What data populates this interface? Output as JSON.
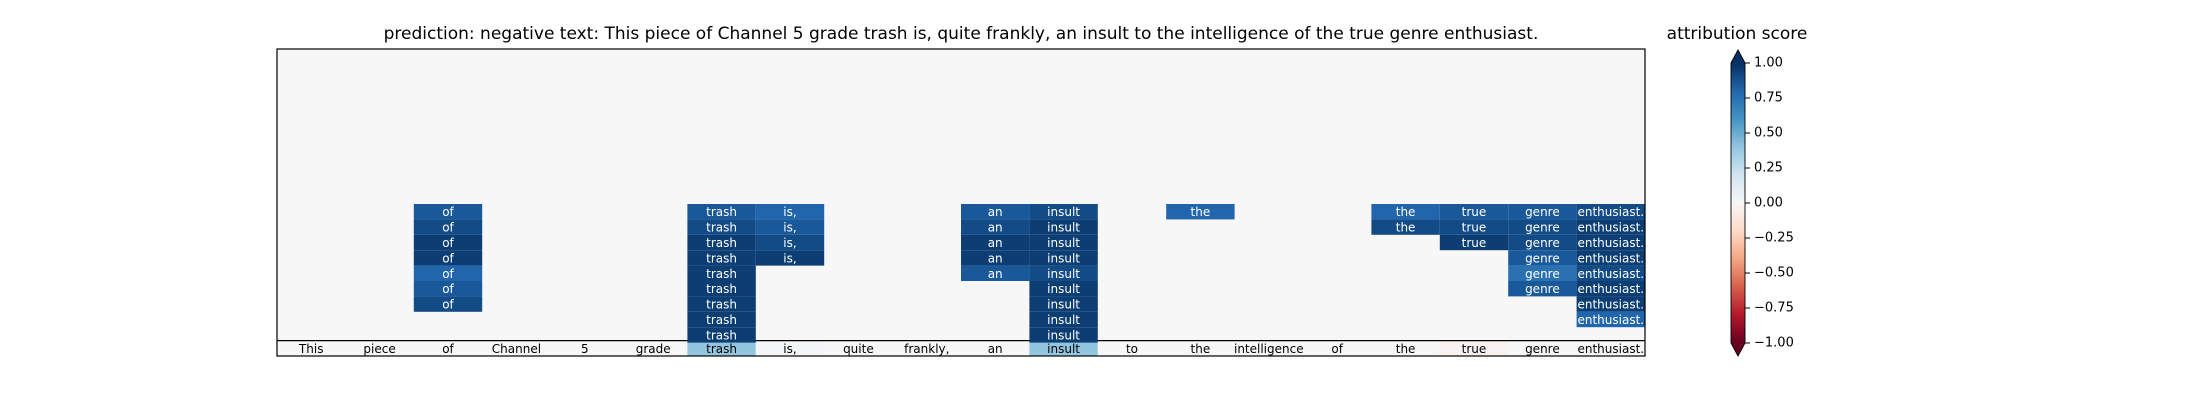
{
  "chart_data": {
    "type": "heatmap",
    "title": "prediction:  negative     text:  This piece of Channel 5 grade trash is, quite frankly, an insult to the intelligence of the true genre enthusiast.",
    "colorbar": {
      "label": "attribution score",
      "range": [
        -1.0,
        1.0
      ],
      "ticks": [
        "1.00",
        "0.75",
        "0.50",
        "0.25",
        "0.00",
        "−0.25",
        "−0.50",
        "−0.75",
        "−1.00"
      ],
      "tick_values": [
        1.0,
        0.75,
        0.5,
        0.25,
        0.0,
        -0.25,
        -0.5,
        -0.75,
        -1.0
      ],
      "colormap": "RdBu",
      "extend": "both"
    },
    "tokens": [
      "This",
      "piece",
      "of",
      "Channel",
      "5",
      "grade",
      "trash",
      "is,",
      "quite",
      "frankly,",
      "an",
      "insult",
      "to",
      "the",
      "intelligence",
      "of",
      "the",
      "true",
      "genre",
      "enthusiast."
    ],
    "base_row_values": [
      0.0,
      0.0,
      0.0,
      0.0,
      0.0,
      0.0,
      0.4,
      0.02,
      0.0,
      0.0,
      0.0,
      0.4,
      0.0,
      0.0,
      0.0,
      0.0,
      0.0,
      -0.03,
      0.0,
      0.0
    ],
    "stacked_rows": [
      [
        0,
        0,
        0.85,
        0,
        0,
        0,
        0.85,
        0.8,
        0,
        0,
        0.85,
        0.9,
        0,
        0.8,
        0,
        0,
        0.8,
        0.85,
        0.85,
        0.9
      ],
      [
        0,
        0,
        0.9,
        0,
        0,
        0,
        0.9,
        0.85,
        0,
        0,
        0.9,
        0.95,
        0,
        0,
        0,
        0,
        0.9,
        0.9,
        0.9,
        0.95
      ],
      [
        0,
        0,
        0.95,
        0,
        0,
        0,
        0.95,
        0.9,
        0,
        0,
        0.95,
        0.95,
        0,
        0,
        0,
        0,
        0,
        0.95,
        0.9,
        0.95
      ],
      [
        0,
        0,
        0.95,
        0,
        0,
        0,
        0.95,
        0.95,
        0,
        0,
        0.95,
        0.95,
        0,
        0,
        0,
        0,
        0,
        0,
        0.85,
        0.95
      ],
      [
        0,
        0,
        0.8,
        0,
        0,
        0,
        0.95,
        0,
        0,
        0,
        0.85,
        0.9,
        0,
        0,
        0,
        0,
        0,
        0,
        0.75,
        0.9
      ],
      [
        0,
        0,
        0.85,
        0,
        0,
        0,
        0.95,
        0,
        0,
        0,
        0,
        0.95,
        0,
        0,
        0,
        0,
        0,
        0,
        0.85,
        0.95
      ],
      [
        0,
        0,
        0.9,
        0,
        0,
        0,
        0.95,
        0,
        0,
        0,
        0,
        0.95,
        0,
        0,
        0,
        0,
        0,
        0,
        0,
        0.95
      ],
      [
        0,
        0,
        0,
        0,
        0,
        0,
        0.95,
        0,
        0,
        0,
        0,
        0.95,
        0,
        0,
        0,
        0,
        0,
        0,
        0,
        0.8
      ],
      [
        0,
        0,
        0,
        0,
        0,
        0,
        0.95,
        0,
        0,
        0,
        0,
        0.95,
        0,
        0,
        0,
        0,
        0,
        0,
        0,
        0
      ]
    ]
  }
}
